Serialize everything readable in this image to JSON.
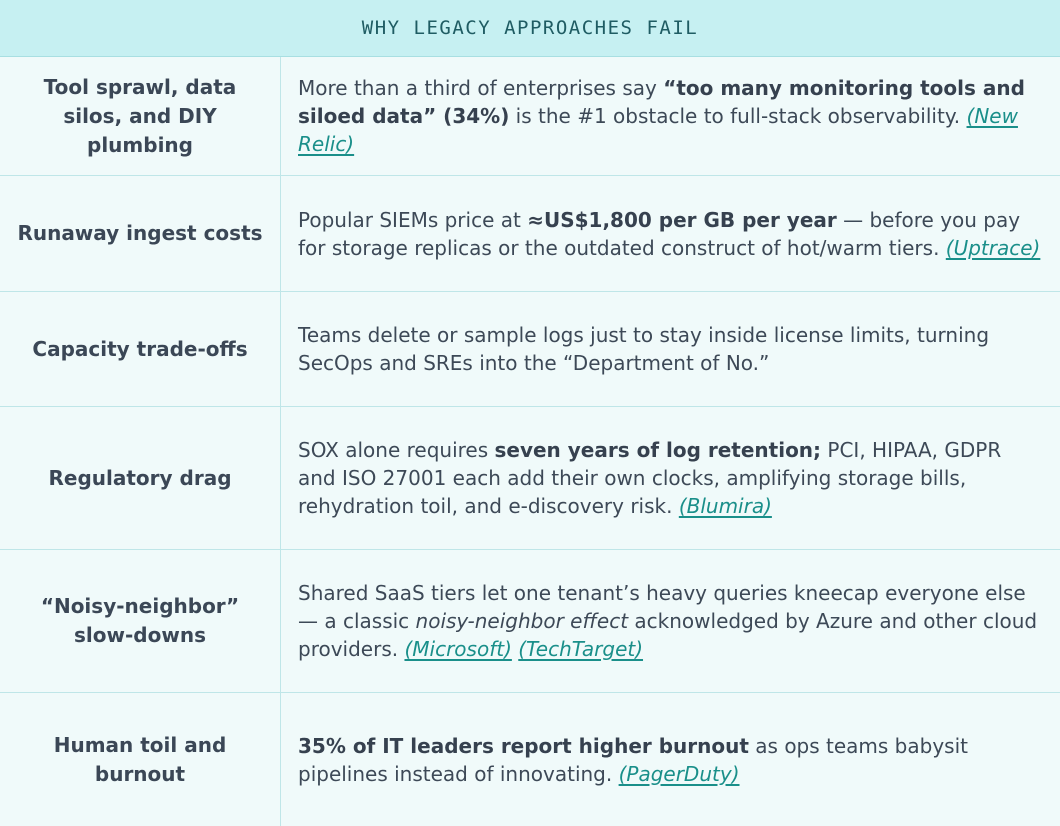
{
  "table": {
    "title": "WHY LEGACY APPROACHES FAIL",
    "rows": [
      {
        "label": "Tool sprawl, data silos, and DIY plumbing",
        "pre": "More than a third of enterprises say ",
        "bold": "“too many monitoring tools and siloed data” (34%)",
        "post": " is the #1 obstacle to full-stack observability. ",
        "link": "(New Relic)"
      },
      {
        "label": "Runaway ingest costs",
        "pre": "Popular SIEMs price at ",
        "bold": "≈US$1,800 per GB per year",
        "post": " — before you pay for storage replicas or the outdated construct of hot/warm tiers. ",
        "link": "(Uptrace)"
      },
      {
        "label": "Capacity trade-offs",
        "text": "Teams delete or sample logs just to stay inside license limits, turning SecOps and SREs into the “Department of No.”"
      },
      {
        "label": "Regulatory drag",
        "pre": "SOX alone requires ",
        "bold": "seven years of log retention;",
        "post": " PCI, HIPAA, GDPR and ISO 27001 each add their own clocks, amplifying storage bills, rehydration toil, and e-discovery risk. ",
        "link": "(Blumira)"
      },
      {
        "label": "“Noisy-neighbor” slow-downs",
        "pre": "Shared SaaS tiers let one tenant’s heavy queries kneecap everyone else — a classic ",
        "italic": "noisy-neighbor effect",
        "post": " acknowledged by Azure and other cloud providers. ",
        "link1": "(Microsoft)",
        "link2": "(TechTarget)"
      },
      {
        "label": "Human toil and burnout",
        "bold": "35% of IT leaders report higher burnout",
        "post": " as ops teams babysit pipelines instead of innovating. ",
        "link": "(PagerDuty)"
      }
    ]
  }
}
